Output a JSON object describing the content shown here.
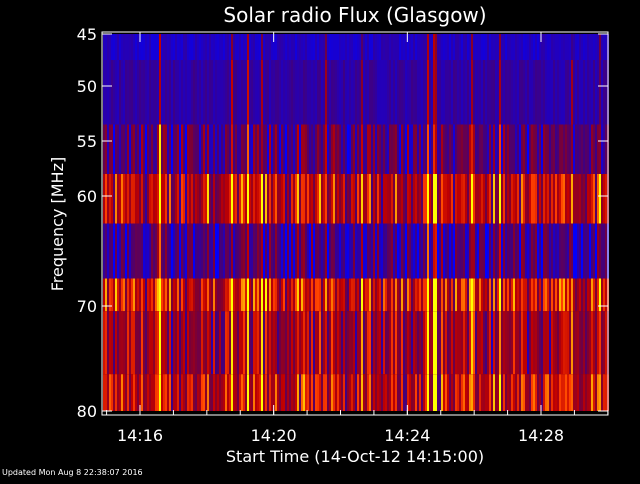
{
  "footer": {
    "updated": "Updated Mon Aug  8 22:38:07 2016"
  },
  "chart_data": {
    "type": "heatmap",
    "title": "Solar radio Flux (Glasgow)",
    "xlabel": "Start Time (14-Oct-12 14:15:00)",
    "ylabel": "Frequency [MHz]",
    "x_ticks": [
      {
        "label": "14:16",
        "minutes": 16
      },
      {
        "label": "14:20",
        "minutes": 20
      },
      {
        "label": "14:24",
        "minutes": 24
      },
      {
        "label": "14:28",
        "minutes": 28
      }
    ],
    "xlim_minutes": [
      15,
      30
    ],
    "y_ticks": [
      45,
      50,
      55,
      60,
      70,
      80
    ],
    "ylim": [
      45,
      80
    ],
    "y_inverted": true,
    "y_scale": "irregular",
    "bands": [
      {
        "from": 45,
        "to": 47.5,
        "level": 0.1
      },
      {
        "from": 47.5,
        "to": 53.5,
        "level": 0.15
      },
      {
        "from": 53.5,
        "to": 58,
        "level": 0.25
      },
      {
        "from": 58,
        "to": 62.5,
        "level": 0.55
      },
      {
        "from": 62.5,
        "to": 67.5,
        "level": 0.2
      },
      {
        "from": 67.5,
        "to": 70.5,
        "level": 0.6
      },
      {
        "from": 70.5,
        "to": 76.5,
        "level": 0.45
      },
      {
        "from": 76.5,
        "to": 80,
        "level": 0.55
      }
    ],
    "colorscale": [
      "#0000ff",
      "#400080",
      "#800030",
      "#c00000",
      "#ff4000",
      "#ffff00"
    ],
    "background": "#000000",
    "foreground": "#ffffff"
  }
}
